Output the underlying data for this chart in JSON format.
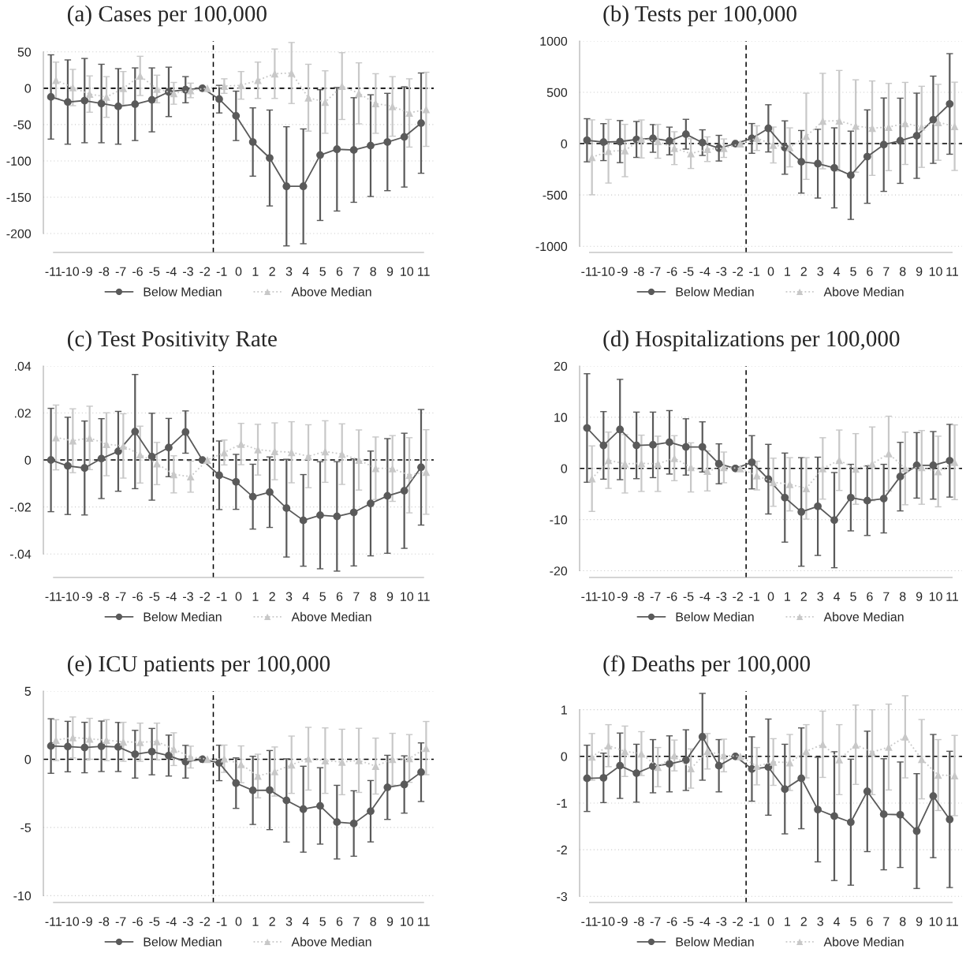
{
  "chart_data": [
    {
      "type": "line",
      "title": "(a) Cases per 100,000",
      "xlim": [
        -11.6,
        11.6
      ],
      "xticks": [
        -11,
        -10,
        -9,
        -8,
        -7,
        -6,
        -5,
        -4,
        -3,
        -2,
        -1,
        0,
        1,
        2,
        3,
        4,
        5,
        6,
        7,
        8,
        9,
        10,
        11
      ],
      "ylim": [
        -226,
        65
      ],
      "yticks": [
        -200,
        -150,
        -100,
        -50,
        0,
        50
      ],
      "grid": "y",
      "legend": "bottom",
      "ref_lines": [
        {
          "axis": "y",
          "value": 0,
          "color": "#000000",
          "line_style": "dashed"
        },
        {
          "axis": "x",
          "value": -1.5,
          "color": "#000000",
          "line_style": "dashed"
        }
      ],
      "series": [
        {
          "name": "Below Median",
          "color": "#5a5a5a",
          "marker": "circle",
          "line_style": "solid",
          "x": [
            -11.15,
            -10.15,
            -9.15,
            -8.15,
            -7.15,
            -6.15,
            -5.15,
            -4.15,
            -3.15,
            -2.15,
            -1.15,
            -0.15,
            0.85,
            1.85,
            2.85,
            3.85,
            4.85,
            5.85,
            6.85,
            7.85,
            8.85,
            9.85,
            10.85
          ],
          "values": [
            -12,
            -19,
            -17,
            -21,
            -25,
            -22,
            -16,
            -5,
            -2,
            0,
            -15,
            -38,
            -74,
            -96,
            -135,
            -135,
            -92,
            -84,
            -85,
            -79,
            -74,
            -67,
            -48
          ],
          "errors": [
            58,
            58,
            58,
            54,
            52,
            50,
            44,
            34,
            18,
            null,
            19,
            34,
            47,
            66,
            82,
            79,
            90,
            85,
            72,
            70,
            67,
            69,
            69
          ]
        },
        {
          "name": "Above Median",
          "color": "#c8c8c8",
          "marker": "triangle",
          "line_style": "dotted",
          "x": [
            -10.85,
            -9.85,
            -8.85,
            -7.85,
            -6.85,
            -5.85,
            -4.85,
            -3.85,
            -2.85,
            -1.85,
            -0.85,
            0.15,
            1.15,
            2.15,
            3.15,
            4.15,
            5.15,
            6.15,
            7.15,
            8.15,
            9.15,
            10.15,
            11.15
          ],
          "values": [
            11,
            1,
            -8,
            -12,
            0,
            17,
            -1,
            -7,
            -3,
            0,
            3,
            4,
            11,
            20,
            21,
            -13,
            -19,
            3,
            -7,
            -21,
            -25,
            -34,
            -29
          ],
          "errors": [
            25,
            25,
            25,
            28,
            23,
            27,
            19,
            15,
            10,
            null,
            10,
            19,
            25,
            34,
            42,
            46,
            43,
            46,
            42,
            41,
            41,
            47,
            51
          ]
        }
      ]
    },
    {
      "type": "line",
      "title": "(b) Tests per 100,000",
      "xlim": [
        -11.6,
        11.6
      ],
      "xticks": [
        -11,
        -10,
        -9,
        -8,
        -7,
        -6,
        -5,
        -4,
        -3,
        -2,
        -1,
        0,
        1,
        2,
        3,
        4,
        5,
        6,
        7,
        8,
        9,
        10,
        11
      ],
      "ylim": [
        -1060,
        1000
      ],
      "yticks": [
        -1000,
        -500,
        0,
        500,
        1000
      ],
      "grid": "y",
      "legend": "bottom",
      "ref_lines": [
        {
          "axis": "y",
          "value": 0,
          "color": "#000000",
          "line_style": "dashed"
        },
        {
          "axis": "x",
          "value": -1.5,
          "color": "#000000",
          "line_style": "dashed"
        }
      ],
      "series": [
        {
          "name": "Below Median",
          "color": "#5a5a5a",
          "marker": "circle",
          "line_style": "solid",
          "x": [
            -11.15,
            -10.15,
            -9.15,
            -8.15,
            -7.15,
            -6.15,
            -5.15,
            -4.15,
            -3.15,
            -2.15,
            -1.15,
            -0.15,
            0.85,
            1.85,
            2.85,
            3.85,
            4.85,
            5.85,
            6.85,
            7.85,
            8.85,
            9.85,
            10.85
          ],
          "values": [
            33,
            15,
            20,
            41,
            51,
            26,
            92,
            10,
            -44,
            0,
            51,
            149,
            -38,
            -177,
            -195,
            -236,
            -308,
            -126,
            -10,
            28,
            77,
            233,
            387
          ],
          "errors": [
            210,
            180,
            205,
            175,
            135,
            135,
            145,
            125,
            125,
            null,
            145,
            230,
            260,
            305,
            335,
            390,
            430,
            455,
            455,
            415,
            415,
            425,
            490
          ]
        },
        {
          "name": "Above Median",
          "color": "#c8c8c8",
          "marker": "triangle",
          "line_style": "dotted",
          "x": [
            -10.85,
            -9.85,
            -8.85,
            -7.85,
            -6.85,
            -5.85,
            -4.85,
            -3.85,
            -2.85,
            -1.85,
            -0.85,
            0.15,
            1.15,
            2.15,
            3.15,
            4.15,
            5.15,
            6.15,
            7.15,
            8.15,
            9.15,
            10.15,
            11.15
          ],
          "values": [
            -133,
            -74,
            -67,
            46,
            23,
            -44,
            -97,
            -54,
            -44,
            0,
            54,
            -13,
            -36,
            72,
            220,
            223,
            172,
            151,
            162,
            197,
            164,
            208,
            169
          ],
          "errors": [
            365,
            310,
            255,
            185,
            165,
            160,
            145,
            120,
            90,
            null,
            120,
            175,
            190,
            420,
            465,
            490,
            450,
            460,
            425,
            400,
            395,
            370,
            430
          ]
        }
      ]
    },
    {
      "type": "line",
      "title": "(c) Test Positivity Rate",
      "xlim": [
        -11.6,
        11.6
      ],
      "xticks": [
        -11,
        -10,
        -9,
        -8,
        -7,
        -6,
        -5,
        -4,
        -3,
        -2,
        -1,
        0,
        1,
        2,
        3,
        4,
        5,
        6,
        7,
        8,
        9,
        10,
        11
      ],
      "ylim": [
        -0.05,
        0.04
      ],
      "yticks": [
        {
          "value": -0.04,
          "label": "-.04"
        },
        {
          "value": -0.02,
          "label": "-.02"
        },
        0,
        {
          "value": 0.02,
          "label": ".02"
        },
        {
          "value": 0.04,
          "label": ".04"
        }
      ],
      "grid": "y",
      "legend": "bottom",
      "ref_lines": [
        {
          "axis": "y",
          "value": 0,
          "color": "#000000",
          "line_style": "dashed"
        },
        {
          "axis": "x",
          "value": -1.5,
          "color": "#000000",
          "line_style": "dashed"
        }
      ],
      "series": [
        {
          "name": "Below Median",
          "color": "#5a5a5a",
          "marker": "circle",
          "line_style": "solid",
          "x": [
            -11.15,
            -10.15,
            -9.15,
            -8.15,
            -7.15,
            -6.15,
            -5.15,
            -4.15,
            -3.15,
            -2.15,
            -1.15,
            -0.15,
            0.85,
            1.85,
            2.85,
            3.85,
            4.85,
            5.85,
            6.85,
            7.85,
            8.85,
            9.85,
            10.85
          ],
          "values": [
            0,
            -0.0025,
            -0.0034,
            0.0006,
            0.0037,
            0.0121,
            0.0014,
            0.0053,
            0.0119,
            0,
            -0.0065,
            -0.0093,
            -0.0156,
            -0.0137,
            -0.0205,
            -0.0257,
            -0.0235,
            -0.024,
            -0.0223,
            -0.0185,
            -0.0153,
            -0.0131,
            -0.0031
          ],
          "errors": [
            0.022,
            0.0207,
            0.02,
            0.017,
            0.017,
            0.0243,
            0.0185,
            0.0124,
            0.009,
            null,
            0.0146,
            0.0117,
            0.0138,
            0.015,
            0.0208,
            0.0195,
            0.0228,
            0.0233,
            0.0228,
            0.0223,
            0.0244,
            0.0245,
            0.0246
          ]
        },
        {
          "name": "Above Median",
          "color": "#c8c8c8",
          "marker": "triangle",
          "line_style": "dotted",
          "x": [
            -10.85,
            -9.85,
            -8.85,
            -7.85,
            -6.85,
            -5.85,
            -4.85,
            -3.85,
            -2.85,
            -1.85,
            -0.85,
            0.15,
            1.15,
            2.15,
            3.15,
            4.15,
            5.15,
            6.15,
            7.15,
            8.15,
            9.15,
            10.15,
            11.15
          ],
          "values": [
            0.0096,
            0.0082,
            0.0094,
            0.0067,
            0.006,
            0.0023,
            -0.0015,
            -0.0061,
            -0.0071,
            0,
            0.0032,
            0.0068,
            0.0044,
            0.0037,
            0.0033,
            0.0016,
            0.0036,
            0.0025,
            0,
            -0.0035,
            -0.0036,
            -0.0065,
            -0.0051
          ],
          "errors": [
            0.0138,
            0.0136,
            0.0135,
            0.0134,
            0.0137,
            0.0121,
            0.009,
            0.0079,
            0.0066,
            null,
            0.0053,
            0.0088,
            0.0108,
            0.0121,
            0.013,
            0.0134,
            0.0131,
            0.0129,
            0.0128,
            0.0133,
            0.014,
            0.016,
            0.018
          ]
        }
      ]
    },
    {
      "type": "line",
      "title": "(d) Hospitalizations per 100,000",
      "xlim": [
        -11.6,
        11.6
      ],
      "xticks": [
        -11,
        -10,
        -9,
        -8,
        -7,
        -6,
        -5,
        -4,
        -3,
        -2,
        -1,
        0,
        1,
        2,
        3,
        4,
        5,
        6,
        7,
        8,
        9,
        10,
        11
      ],
      "ylim": [
        -21.3,
        20
      ],
      "yticks": [
        -20,
        -10,
        0,
        10,
        20
      ],
      "grid": "y",
      "legend": "bottom",
      "ref_lines": [
        {
          "axis": "y",
          "value": 0,
          "color": "#000000",
          "line_style": "dashed"
        },
        {
          "axis": "x",
          "value": -1.5,
          "color": "#000000",
          "line_style": "dashed"
        }
      ],
      "series": [
        {
          "name": "Below Median",
          "color": "#5a5a5a",
          "marker": "circle",
          "line_style": "solid",
          "x": [
            -11.15,
            -10.15,
            -9.15,
            -8.15,
            -7.15,
            -6.15,
            -5.15,
            -4.15,
            -3.15,
            -2.15,
            -1.15,
            -0.15,
            0.85,
            1.85,
            2.85,
            3.85,
            4.85,
            5.85,
            6.85,
            7.85,
            8.85,
            9.85,
            10.85
          ],
          "values": [
            7.9,
            4.5,
            7.6,
            4.5,
            4.6,
            5.1,
            4.2,
            4.2,
            0.9,
            0,
            1.2,
            -2.1,
            -5.7,
            -8.5,
            -7.4,
            -10.1,
            -5.7,
            -6.3,
            -5.9,
            -1.6,
            0.6,
            0.6,
            1.5
          ],
          "errors": [
            10.6,
            6.6,
            9.8,
            6.5,
            6.4,
            6.2,
            5.5,
            4.9,
            3.9,
            null,
            5.2,
            6.8,
            8.7,
            10.6,
            9.6,
            9.3,
            6.5,
            6.8,
            6.7,
            6.7,
            6.4,
            6.6,
            7.1
          ]
        },
        {
          "name": "Above Median",
          "color": "#c8c8c8",
          "marker": "triangle",
          "line_style": "dotted",
          "x": [
            -10.85,
            -9.85,
            -8.85,
            -7.85,
            -6.85,
            -5.85,
            -4.85,
            -3.85,
            -2.85,
            -1.85,
            -0.85,
            0.15,
            1.15,
            2.15,
            3.15,
            4.15,
            5.15,
            6.15,
            7.15,
            8.15,
            9.15,
            10.15,
            11.15
          ],
          "values": [
            -2,
            1.6,
            0.9,
            1,
            0.9,
            2,
            0.2,
            -0.5,
            0.2,
            0,
            -1.4,
            -2.7,
            -3.1,
            -3.9,
            0,
            1.6,
            -0.1,
            0.9,
            2.9,
            0,
            0.2,
            -0.6,
            1.2
          ],
          "errors": [
            6.4,
            5.5,
            5.7,
            5.5,
            5.4,
            4.4,
            4.8,
            3.9,
            3,
            null,
            2.8,
            4.7,
            5.2,
            6,
            6,
            5.9,
            6.9,
            7.2,
            7.3,
            7.1,
            7.2,
            6.9,
            7.3
          ]
        }
      ]
    },
    {
      "type": "line",
      "title": "(e) ICU patients per 100,000",
      "xlim": [
        -11.6,
        11.6
      ],
      "xticks": [
        -11,
        -10,
        -9,
        -8,
        -7,
        -6,
        -5,
        -4,
        -3,
        -2,
        -1,
        0,
        1,
        2,
        3,
        4,
        5,
        6,
        7,
        8,
        9,
        10,
        11
      ],
      "ylim": [
        -10.5,
        5
      ],
      "yticks": [
        -10,
        -5,
        0,
        5
      ],
      "grid": "y",
      "legend": "bottom",
      "ref_lines": [
        {
          "axis": "y",
          "value": 0,
          "color": "#000000",
          "line_style": "dashed"
        },
        {
          "axis": "x",
          "value": -1.5,
          "color": "#000000",
          "line_style": "dashed"
        }
      ],
      "series": [
        {
          "name": "Below Median",
          "color": "#5a5a5a",
          "marker": "circle",
          "line_style": "solid",
          "x": [
            -11.15,
            -10.15,
            -9.15,
            -8.15,
            -7.15,
            -6.15,
            -5.15,
            -4.15,
            -3.15,
            -2.15,
            -1.15,
            -0.15,
            0.85,
            1.85,
            2.85,
            3.85,
            4.85,
            5.85,
            6.85,
            7.85,
            8.85,
            9.85,
            10.85
          ],
          "values": [
            0.97,
            0.93,
            0.86,
            0.95,
            0.9,
            0.37,
            0.56,
            0.27,
            -0.18,
            0,
            -0.27,
            -1.75,
            -2.28,
            -2.26,
            -3.02,
            -3.66,
            -3.42,
            -4.61,
            -4.71,
            -3.81,
            -2.06,
            -1.85,
            -0.95
          ],
          "errors": [
            2,
            1.85,
            1.85,
            1.85,
            1.8,
            1.75,
            1.7,
            1.5,
            1.2,
            null,
            1.3,
            1.85,
            2.5,
            2.9,
            3.05,
            3.15,
            2.8,
            2.7,
            2.4,
            2.25,
            2.35,
            2.1,
            2.15
          ]
        },
        {
          "name": "Above Median",
          "color": "#c8c8c8",
          "marker": "triangle",
          "line_style": "dotted",
          "x": [
            -10.85,
            -9.85,
            -8.85,
            -7.85,
            -6.85,
            -5.85,
            -4.85,
            -3.85,
            -2.85,
            -1.85,
            -0.85,
            0.15,
            1.15,
            2.15,
            3.15,
            4.15,
            5.15,
            6.15,
            7.15,
            8.15,
            9.15,
            10.15,
            11.15
          ],
          "values": [
            1.4,
            1.6,
            1.5,
            1.4,
            1.28,
            1.25,
            1.3,
            0.74,
            0.16,
            0,
            0.04,
            -0.37,
            -1.23,
            -0.9,
            -0.4,
            0.04,
            -0.1,
            -0.2,
            -0.08,
            -0.5,
            0,
            0.06,
            0.82
          ],
          "errors": [
            1.5,
            1.5,
            1.5,
            1.5,
            1.43,
            1.4,
            1.35,
            1.2,
            0.8,
            null,
            1,
            1.35,
            1.6,
            1.8,
            2.1,
            2.3,
            2.4,
            2.4,
            2.35,
            2.05,
            1.9,
            1.75,
            1.95
          ]
        }
      ]
    },
    {
      "type": "line",
      "title": "(f) Deaths per 100,000",
      "xlim": [
        -11.6,
        11.6
      ],
      "xticks": [
        -11,
        -10,
        -9,
        -8,
        -7,
        -6,
        -5,
        -4,
        -3,
        -2,
        -1,
        0,
        1,
        2,
        3,
        4,
        5,
        6,
        7,
        8,
        9,
        10,
        11
      ],
      "ylim": [
        -3.13,
        1.4
      ],
      "yticks": [
        -3,
        -2,
        -1,
        0,
        1
      ],
      "grid": "y",
      "legend": "bottom",
      "ref_lines": [
        {
          "axis": "y",
          "value": 0,
          "color": "#000000",
          "line_style": "dashed"
        },
        {
          "axis": "x",
          "value": -1.5,
          "color": "#000000",
          "line_style": "dashed"
        }
      ],
      "series": [
        {
          "name": "Below Median",
          "color": "#5a5a5a",
          "marker": "circle",
          "line_style": "solid",
          "x": [
            -11.15,
            -10.15,
            -9.15,
            -8.15,
            -7.15,
            -6.15,
            -5.15,
            -4.15,
            -3.15,
            -2.15,
            -1.15,
            -0.15,
            0.85,
            1.85,
            2.85,
            3.85,
            4.85,
            5.85,
            6.85,
            7.85,
            8.85,
            9.85,
            10.85
          ],
          "values": [
            -0.47,
            -0.46,
            -0.2,
            -0.36,
            -0.21,
            -0.16,
            -0.08,
            0.42,
            -0.2,
            0,
            -0.27,
            -0.23,
            -0.7,
            -0.47,
            -1.14,
            -1.28,
            -1.41,
            -0.75,
            -1.24,
            -1.25,
            -1.6,
            -0.85,
            -1.35
          ],
          "errors": [
            0.71,
            0.53,
            0.7,
            0.62,
            0.57,
            0.6,
            0.65,
            0.93,
            0.56,
            null,
            0.69,
            1.03,
            0.96,
            1.08,
            1.12,
            1.38,
            1.35,
            1.29,
            1.19,
            1.13,
            1.23,
            1.32,
            1.46
          ]
        },
        {
          "name": "Above Median",
          "color": "#c8c8c8",
          "marker": "triangle",
          "line_style": "dotted",
          "x": [
            -10.85,
            -9.85,
            -8.85,
            -7.85,
            -6.85,
            -5.85,
            -4.85,
            -3.85,
            -2.85,
            -1.85,
            -0.85,
            0.15,
            1.15,
            2.15,
            3.15,
            4.15,
            5.15,
            6.15,
            7.15,
            8.15,
            9.15,
            10.15,
            11.15
          ],
          "values": [
            -0.01,
            0.23,
            0.11,
            0.06,
            -0.23,
            0.02,
            -0.26,
            0.11,
            0.02,
            0,
            -0.21,
            -0.12,
            -0.13,
            0.11,
            0.26,
            -0.07,
            0.25,
            0.09,
            0.2,
            0.42,
            -0.06,
            -0.4,
            -0.41
          ],
          "errors": [
            0.5,
            0.45,
            0.54,
            0.47,
            0.42,
            0.33,
            0.42,
            0.38,
            0.35,
            null,
            0.4,
            0.5,
            0.6,
            0.57,
            0.71,
            0.75,
            0.85,
            0.91,
            0.92,
            0.88,
            0.85,
            0.76,
            0.86
          ]
        }
      ]
    }
  ]
}
